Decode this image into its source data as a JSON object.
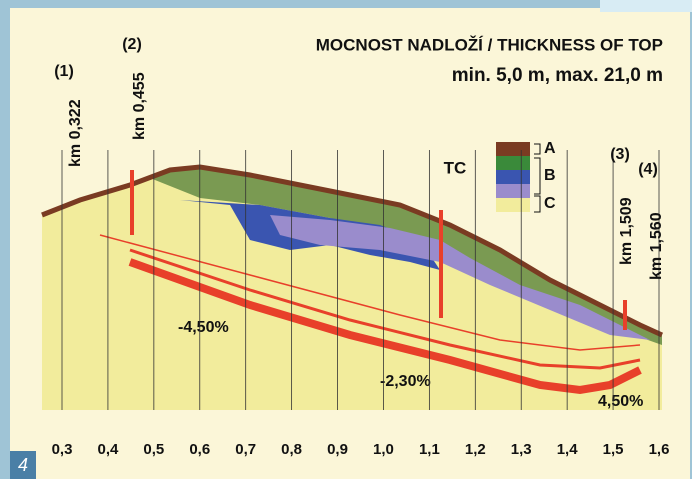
{
  "title": "MOCNOST NADLOŽÍ / THICKNESS OF TOP",
  "subtitle": "min. 5,0 m, max. 21,0 m",
  "figure_number": "4",
  "markers": [
    {
      "number": "(1)",
      "km": "km 0,322"
    },
    {
      "number": "(2)",
      "km": "km 0,455"
    },
    {
      "number": "(3)",
      "km": "km 1,509"
    },
    {
      "number": "(4)",
      "km": "km 1,560"
    }
  ],
  "tc_label": "TC",
  "legend": [
    "A",
    "B",
    "C"
  ],
  "gradients": [
    "-4,50%",
    "-2,30%",
    "4,50%"
  ],
  "x_axis_labels": [
    "0,3",
    "0,4",
    "0,5",
    "0,6",
    "0,7",
    "0,8",
    "0,9",
    "1,0",
    "1,1",
    "1,2",
    "1,3",
    "1,4",
    "1,5",
    "1,6"
  ]
}
